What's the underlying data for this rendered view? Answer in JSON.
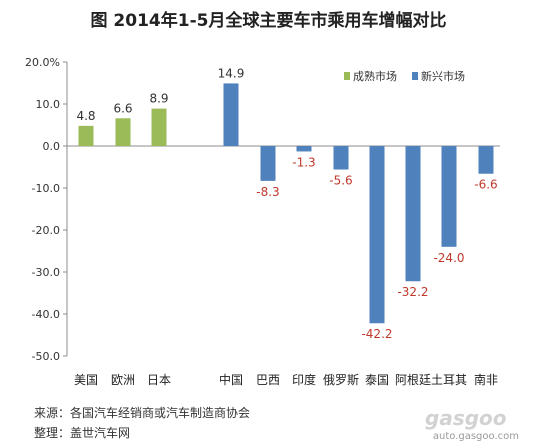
{
  "title": "图  2014年1-5月全球主要车市乘用车增幅对比",
  "chart_data": {
    "type": "bar",
    "categories": [
      "美国",
      "欧洲",
      "日本",
      "中国",
      "巴西",
      "印度",
      "俄罗斯",
      "泰国",
      "阿根廷",
      "土耳其",
      "南非"
    ],
    "series": [
      {
        "name": "成熟市场",
        "color": "#9bbb59",
        "values": [
          4.8,
          6.6,
          8.9,
          null,
          null,
          null,
          null,
          null,
          null,
          null,
          null
        ]
      },
      {
        "name": "新兴市场",
        "color": "#4f81bd",
        "values": [
          null,
          null,
          null,
          14.9,
          -8.3,
          -1.3,
          -5.6,
          -42.2,
          -32.2,
          -24.0,
          -6.6
        ]
      }
    ],
    "data_labels": [
      "4.8",
      "6.6",
      "8.9",
      "14.9",
      "-8.3",
      "-1.3",
      "-5.6",
      "-42.2",
      "-32.2",
      "-24.0",
      "-6.6"
    ],
    "y_ticks": [
      "20.0%",
      "10.0",
      "0.0",
      "-10.0",
      "-20.0",
      "-30.0",
      "-40.0",
      "-50.0"
    ],
    "y_tick_values": [
      20,
      10,
      0,
      -10,
      -20,
      -30,
      -40,
      -50
    ],
    "ylim": [
      -50,
      20
    ],
    "legend_placement": "top-right",
    "grid": false,
    "positive_label_color": "#333333",
    "negative_label_color": "#c0392b"
  },
  "source": "来源：各国汽车经销商或汽车制造商协会",
  "compiled": "整理：盖世汽车网",
  "watermark": {
    "logo": "gasgoo",
    "url": "auto.gasgoo.com"
  }
}
